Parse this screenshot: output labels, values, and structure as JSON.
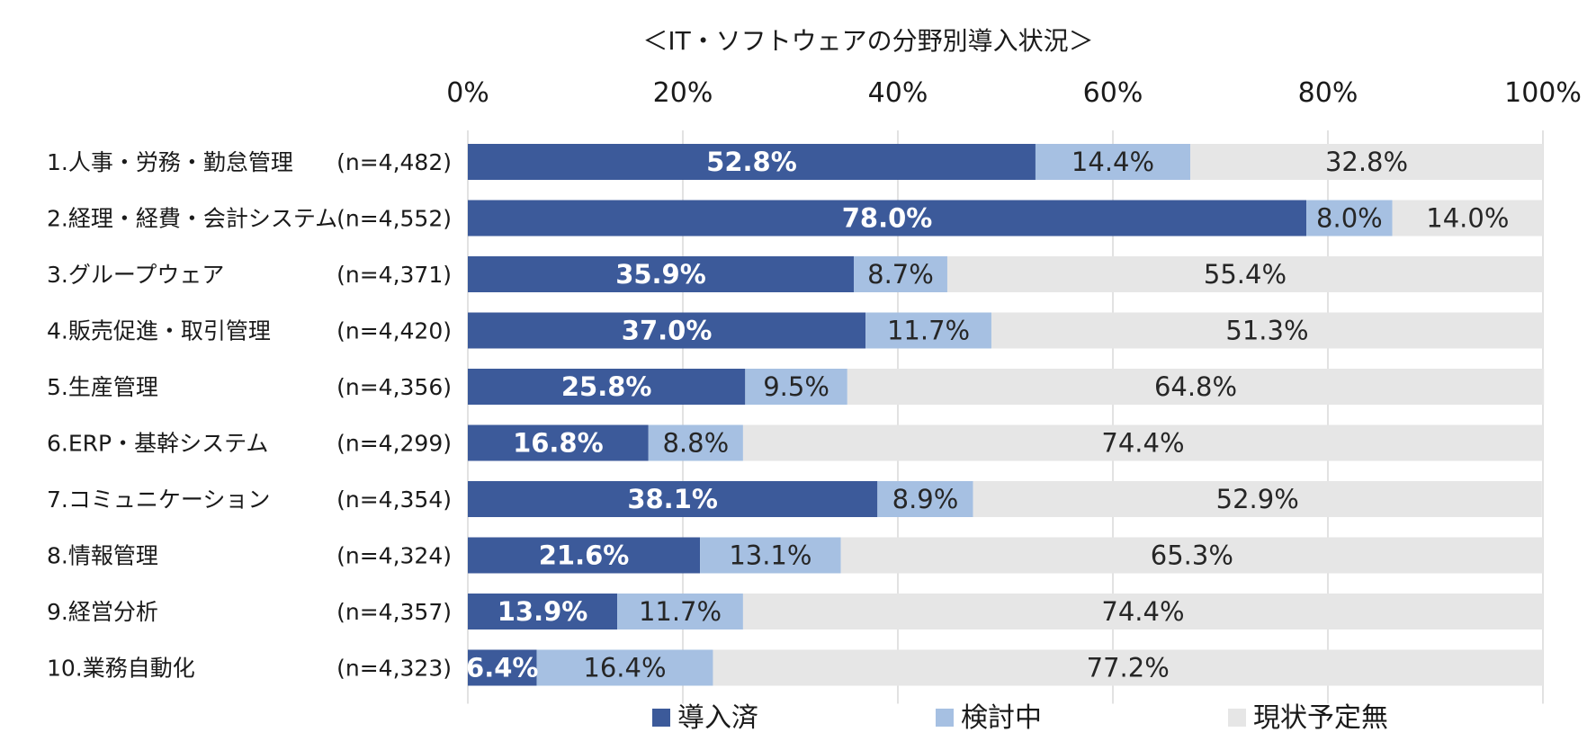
{
  "chart_data": {
    "type": "bar",
    "orientation": "horizontal",
    "stacked": true,
    "title": "＜IT・ソフトウェアの分野別導入状況＞",
    "xlim": [
      0,
      100
    ],
    "x_ticks": [
      "0%",
      "20%",
      "40%",
      "60%",
      "80%",
      "100%"
    ],
    "grid": true,
    "legend_position": "bottom",
    "categories": [
      "1.人事・労務・勤怠管理",
      "2.経理・経費・会計システム",
      "3.グループウェア",
      "4.販売促進・取引管理",
      "5.生産管理",
      "6.ERP・基幹システム",
      "7.コミュニケーション",
      "8.情報管理",
      "9.経営分析",
      "10.業務自動化"
    ],
    "sample_sizes": [
      "(n=4,482)",
      "(n=4,552)",
      "(n=4,371)",
      "(n=4,420)",
      "(n=4,356)",
      "(n=4,299)",
      "(n=4,354)",
      "(n=4,324)",
      "(n=4,357)",
      "(n=4,323)"
    ],
    "series": [
      {
        "name": "導入済",
        "color": "#3c5a9a",
        "label_color": "#ffffff",
        "values": [
          52.8,
          78.0,
          35.9,
          37.0,
          25.8,
          16.8,
          38.1,
          21.6,
          13.9,
          6.4
        ],
        "labels": [
          "52.8%",
          "78.0%",
          "35.9%",
          "37.0%",
          "25.8%",
          "16.8%",
          "38.1%",
          "21.6%",
          "13.9%",
          "6.4%"
        ]
      },
      {
        "name": "検討中",
        "color": "#a6c0e2",
        "label_color": "#262626",
        "values": [
          14.4,
          8.0,
          8.7,
          11.7,
          9.5,
          8.8,
          8.9,
          13.1,
          11.7,
          16.4
        ],
        "labels": [
          "14.4%",
          "8.0%",
          "8.7%",
          "11.7%",
          "9.5%",
          "8.8%",
          "8.9%",
          "13.1%",
          "11.7%",
          "16.4%"
        ]
      },
      {
        "name": "現状予定無",
        "color": "#e6e6e6",
        "label_color": "#262626",
        "values": [
          32.8,
          14.0,
          55.4,
          51.3,
          64.8,
          74.4,
          52.9,
          65.3,
          74.4,
          77.2
        ],
        "labels": [
          "32.8%",
          "14.0%",
          "55.4%",
          "51.3%",
          "64.8%",
          "74.4%",
          "52.9%",
          "65.3%",
          "74.4%",
          "77.2%"
        ]
      }
    ]
  }
}
